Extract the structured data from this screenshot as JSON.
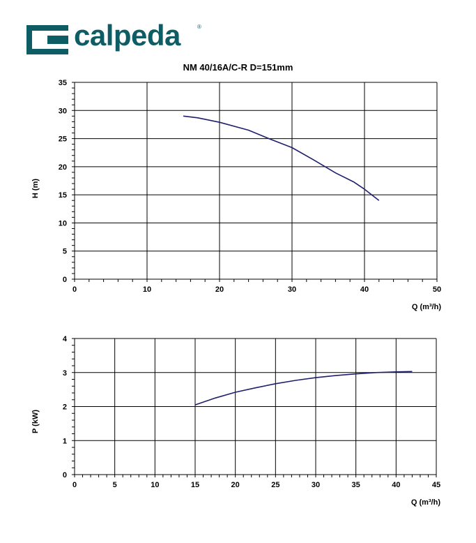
{
  "brand": {
    "name": "calpeda",
    "reg": "®",
    "color": "#0f5d64"
  },
  "title": "NM 40/16A/C-R D=151mm",
  "chart_data": [
    {
      "type": "line",
      "title": "NM 40/16A/C-R D=151mm",
      "xlabel": "Q (m³/h)",
      "ylabel": "H (m)",
      "xlim": [
        0,
        50
      ],
      "ylim": [
        0,
        35
      ],
      "xticks": [
        0,
        10,
        20,
        30,
        40,
        50
      ],
      "yticks": [
        0,
        5,
        10,
        15,
        20,
        25,
        30,
        35
      ],
      "grid": true,
      "line_color": "#1f1f6e",
      "series": [
        {
          "x": [
            15,
            17,
            20,
            24,
            27,
            30,
            33,
            36,
            38.5,
            40,
            42
          ],
          "y": [
            29,
            28.7,
            27.9,
            26.5,
            24.9,
            23.4,
            21.2,
            18.9,
            17.3,
            16,
            14
          ]
        }
      ]
    },
    {
      "type": "line",
      "xlabel": "Q (m³/h)",
      "ylabel": "P (kW)",
      "xlim": [
        0,
        45
      ],
      "ylim": [
        0,
        4
      ],
      "xticks": [
        0,
        5,
        10,
        15,
        20,
        25,
        30,
        35,
        40,
        45
      ],
      "yticks": [
        0,
        1,
        2,
        3,
        4
      ],
      "grid": true,
      "line_color": "#1f1f6e",
      "series": [
        {
          "x": [
            15,
            17.5,
            20,
            22.5,
            25,
            27.5,
            30,
            32.5,
            35,
            37.5,
            40,
            42
          ],
          "y": [
            2.05,
            2.25,
            2.42,
            2.55,
            2.67,
            2.77,
            2.85,
            2.91,
            2.96,
            3.0,
            3.02,
            3.03
          ]
        }
      ]
    }
  ]
}
